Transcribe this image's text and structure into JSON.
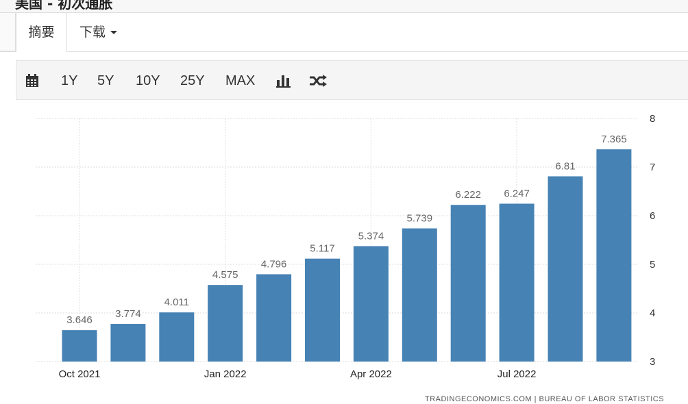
{
  "header": {
    "title_fragment": "美国 - 初次通胀"
  },
  "tabs": {
    "summary": "摘要",
    "download": "下载"
  },
  "toolbar": {
    "calendar_icon": "calendar-icon",
    "ranges": [
      "1Y",
      "5Y",
      "10Y",
      "25Y",
      "MAX"
    ],
    "chart_type_icon": "bar-chart-icon",
    "shuffle_icon": "shuffle-icon"
  },
  "colors": {
    "bar": "#4682b4",
    "label": "#666666",
    "grid": "#dddddd"
  },
  "chart_data": {
    "type": "bar",
    "categories": [
      "Oct 2021",
      "Nov 2021",
      "Dec 2021",
      "Jan 2022",
      "Feb 2022",
      "Mar 2022",
      "Apr 2022",
      "May 2022",
      "Jun 2022",
      "Jul 2022",
      "Aug 2022",
      "Sep 2022"
    ],
    "values": [
      3.646,
      3.774,
      4.011,
      4.575,
      4.796,
      5.117,
      5.374,
      5.739,
      6.222,
      6.247,
      6.81,
      7.365
    ],
    "value_labels": [
      "3.646",
      "3.774",
      "4.011",
      "4.575",
      "4.796",
      "5.117",
      "5.374",
      "5.739",
      "6.222",
      "6.247",
      "6.81",
      "7.365"
    ],
    "x_tick_labels": [
      "Oct 2021",
      "Jan 2022",
      "Apr 2022",
      "Jul 2022"
    ],
    "y_ticks": [
      "3",
      "4",
      "5",
      "6",
      "7",
      "8"
    ],
    "ylim": [
      3,
      8
    ],
    "y_axis_side": "right",
    "grid": true
  },
  "source": "TRADINGECONOMICS.COM | BUREAU OF LABOR STATISTICS"
}
